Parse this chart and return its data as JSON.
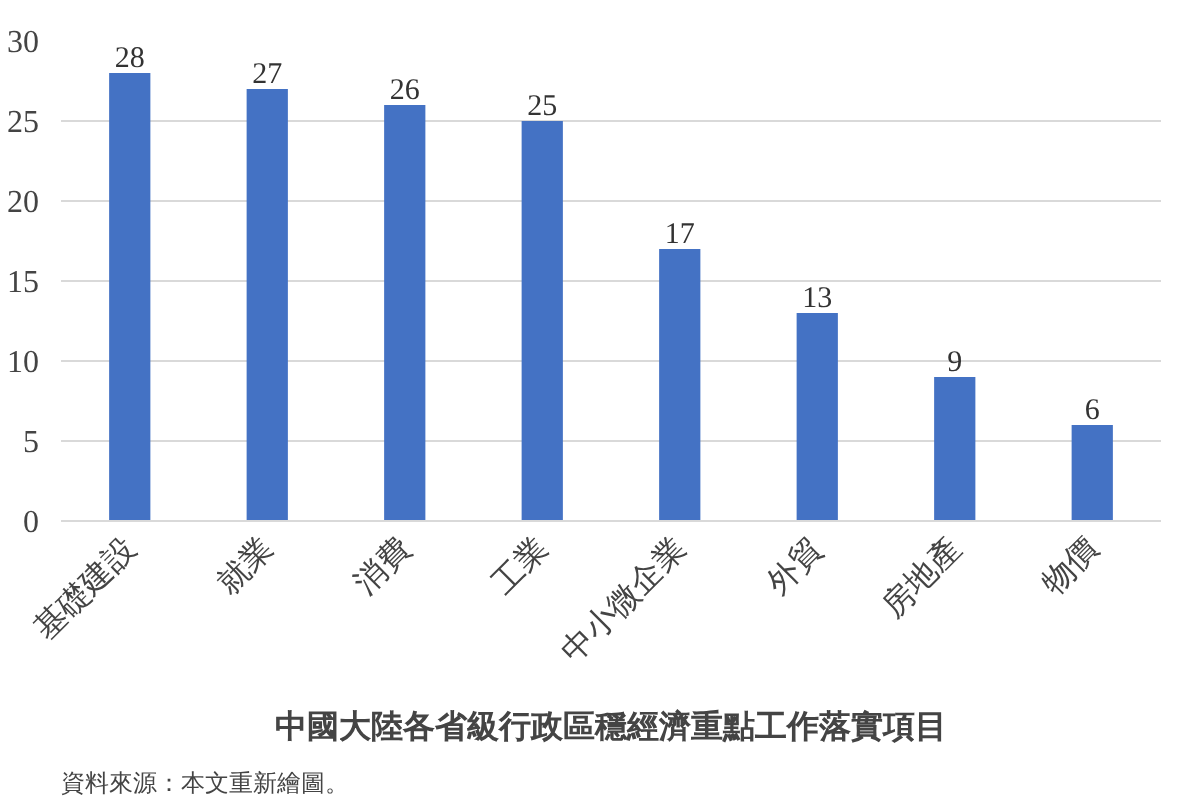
{
  "chart_data": {
    "type": "bar",
    "title": "中國大陸各省級行政區穩經濟重點工作落實項目",
    "categories": [
      "基礎建設",
      "就業",
      "消費",
      "工業",
      "中小微企業",
      "外貿",
      "房地產",
      "物價"
    ],
    "values": [
      28,
      27,
      26,
      25,
      17,
      13,
      9,
      6
    ],
    "color": "#4472c4",
    "ylim": [
      0,
      30
    ],
    "yticks": [
      0,
      5,
      10,
      15,
      20,
      25,
      30
    ],
    "grid": "y",
    "data_labels": true,
    "annotations": [
      "資料來源：本文重新繪圖。"
    ]
  }
}
